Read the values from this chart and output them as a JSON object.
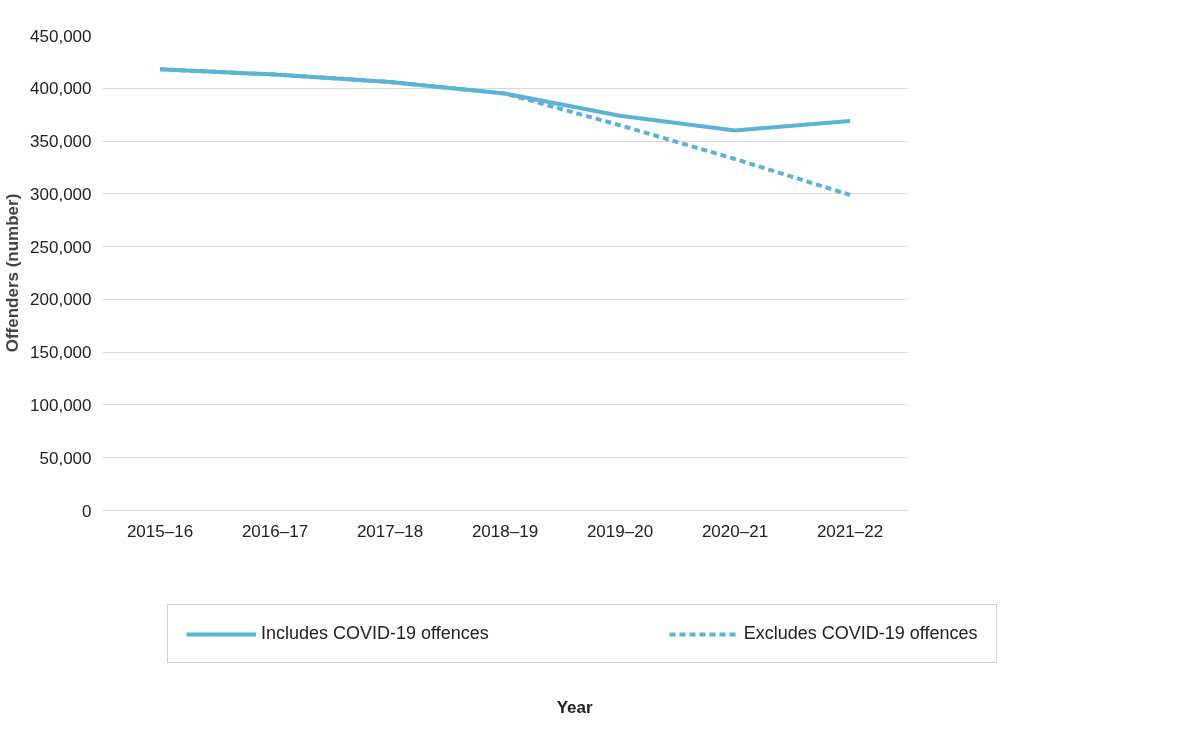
{
  "chart_data": {
    "type": "line",
    "ylabel": "Offenders (number)",
    "annotations": [
      "Year"
    ],
    "categories": [
      "2015–16",
      "2016–17",
      "2017–18",
      "2018–19",
      "2019–20",
      "2020–21",
      "2021–22"
    ],
    "series": [
      {
        "name": "Includes COVID-19 offences",
        "color": "#5bb3d6",
        "line_style": "solid",
        "values": [
          418000,
          413000,
          406000,
          395000,
          374000,
          360000,
          369000
        ]
      },
      {
        "name": "Excludes COVID-19 offences",
        "color": "#5bb3d6",
        "line_style": "dashed",
        "values": [
          418000,
          413000,
          406000,
          395000,
          365000,
          333000,
          299000
        ]
      }
    ],
    "ylim": [
      0,
      450000
    ],
    "yticks": [
      {
        "value": 0,
        "label": "0"
      },
      {
        "value": 50000,
        "label": "50,000"
      },
      {
        "value": 100000,
        "label": "100,000"
      },
      {
        "value": 150000,
        "label": "150,000"
      },
      {
        "value": 200000,
        "label": "200,000"
      },
      {
        "value": 250000,
        "label": "250,000"
      },
      {
        "value": 300000,
        "label": "300,000"
      },
      {
        "value": 350000,
        "label": "350,000"
      },
      {
        "value": 400000,
        "label": "400,000"
      },
      {
        "value": 450000,
        "label": "450,000"
      }
    ],
    "grid": "y",
    "legend": "bottom",
    "marker": "none"
  }
}
